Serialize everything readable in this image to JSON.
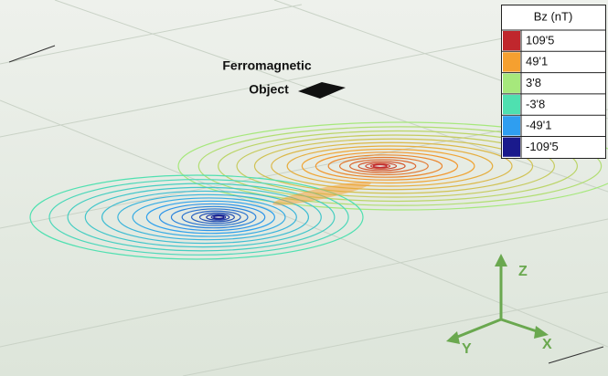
{
  "legend": {
    "title": "Bz (nT)",
    "items": [
      {
        "label": "109'5",
        "color": "#c0272d"
      },
      {
        "label": "49'1",
        "color": "#f5a030"
      },
      {
        "label": "3'8",
        "color": "#a6e87c"
      },
      {
        "label": "-3'8",
        "color": "#4fe0b0"
      },
      {
        "label": "-49'1",
        "color": "#2f9ef0"
      },
      {
        "label": "-109'5",
        "color": "#1a1a8c"
      }
    ]
  },
  "annotation": {
    "line1": "Ferromagnetic",
    "line2": "Object"
  },
  "axes": {
    "z": "Z",
    "x": "X",
    "y": "Y"
  }
}
